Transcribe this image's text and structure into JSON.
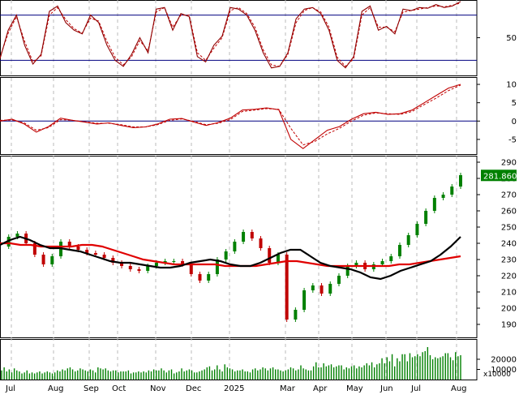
{
  "colors": {
    "up": "#008000",
    "down": "#c00000",
    "ma_short": "#000000",
    "ma_long": "#e00000",
    "osc": "#c00000",
    "panel_line": "#000080",
    "volume": "#008000",
    "price_tag_bg": "#008000",
    "price_tag_text": "#ffffff"
  },
  "x_axis": {
    "labels": [
      "Jul",
      "Aug",
      "Sep",
      "Oct",
      "Nov",
      "Dec",
      "2025",
      "Mar",
      "Apr",
      "May",
      "Jun",
      "Jul",
      "Aug"
    ]
  },
  "panels": {
    "stoch": {
      "type": "line",
      "ylim": [
        0,
        100
      ],
      "ticks": [
        "50"
      ],
      "levels": [
        20,
        80
      ]
    },
    "macd": {
      "type": "line",
      "ylim": [
        -9,
        12
      ],
      "ticks": [
        "10",
        "5",
        "0",
        "-5"
      ]
    },
    "price": {
      "type": "line",
      "ylim": [
        182,
        294
      ],
      "ticks": [
        "290",
        "280",
        "270",
        "260",
        "250",
        "240",
        "230",
        "220",
        "210",
        "200",
        "190"
      ],
      "last_price_label": "281.860",
      "last_price": 281.86
    },
    "volume": {
      "ticks": [
        "20000",
        "10000"
      ],
      "unit_label": "x10000"
    }
  },
  "chart_data": [
    {
      "type": "line",
      "series": [
        {
          "values": [
            22,
            60,
            80,
            40,
            15,
            28,
            85,
            92,
            70,
            60,
            55,
            80,
            70,
            40,
            20,
            12,
            28,
            50,
            30,
            88,
            90,
            60,
            82,
            78,
            25,
            18,
            40,
            52,
            90,
            88,
            80,
            60,
            30,
            10,
            12,
            30,
            75,
            88,
            90,
            82,
            60,
            20,
            10,
            25,
            85,
            92,
            60,
            65,
            55,
            88,
            86,
            90,
            89,
            94,
            90,
            92,
            98
          ]
        },
        {
          "values": [
            24,
            56,
            78,
            45,
            18,
            26,
            80,
            90,
            74,
            62,
            56,
            76,
            72,
            45,
            24,
            14,
            25,
            46,
            33,
            84,
            90,
            64,
            80,
            80,
            30,
            20,
            36,
            50,
            86,
            90,
            82,
            64,
            34,
            14,
            12,
            28,
            70,
            86,
            90,
            84,
            64,
            24,
            12,
            22,
            80,
            90,
            64,
            64,
            58,
            84,
            86,
            88,
            90,
            92,
            91,
            93,
            96
          ]
        }
      ]
    },
    {
      "type": "line",
      "series": [
        {
          "values": [
            0,
            0.5,
            -0.8,
            -3,
            -1.5,
            0.8,
            0.2,
            -0.3,
            -0.8,
            -0.5,
            -1.2,
            -1.8,
            -1.6,
            -0.8,
            0.5,
            0.7,
            -0.3,
            -1.2,
            -0.4,
            0.8,
            3,
            3.2,
            3.6,
            3.1,
            -5,
            -7.5,
            -5,
            -2.5,
            -1.5,
            0.5,
            2,
            2.4,
            1.8,
            2,
            3,
            5,
            7,
            9,
            10
          ]
        },
        {
          "values": [
            0.2,
            0.3,
            -0.5,
            -2.5,
            -1.8,
            0.4,
            0.2,
            -0.2,
            -0.6,
            -0.6,
            -1,
            -1.6,
            -1.6,
            -1,
            0.2,
            0.6,
            -0.1,
            -1,
            -0.6,
            0.4,
            2.6,
            3,
            3.4,
            3.2,
            -2,
            -6.5,
            -5.5,
            -3.5,
            -2,
            0,
            1.6,
            2.2,
            2,
            1.8,
            2.6,
            4.5,
            6.3,
            8.3,
            9.8
          ]
        }
      ]
    },
    {
      "type": "line",
      "series": [
        {
          "values": [
            238,
            244,
            246,
            240,
            233,
            227,
            232,
            241,
            238,
            236,
            234,
            233,
            231,
            228,
            226,
            224,
            223,
            226,
            228,
            229,
            229,
            227,
            221,
            217,
            221,
            230,
            235,
            241,
            247,
            243,
            237,
            228,
            233,
            193,
            199,
            211,
            214,
            209,
            215,
            220,
            226,
            228,
            224,
            227,
            229,
            232,
            239,
            245,
            252,
            260,
            268,
            270,
            275,
            282
          ]
        },
        {
          "values": [
            239,
            242,
            244,
            242,
            239,
            237,
            237,
            236,
            235,
            233,
            231,
            229,
            228,
            228,
            227,
            226,
            225,
            225,
            226,
            228,
            229,
            230,
            229,
            227,
            226,
            226,
            228,
            231,
            234,
            236,
            236,
            232,
            228,
            226,
            225,
            224,
            222,
            219,
            218,
            220,
            223,
            225,
            227,
            229,
            233,
            238,
            244
          ]
        },
        {
          "values": [
            240,
            240,
            239,
            239,
            238,
            238,
            238,
            238,
            239,
            239,
            238,
            236,
            234,
            232,
            230,
            229,
            228,
            227,
            227,
            227,
            227,
            227,
            226,
            226,
            226,
            226,
            227,
            228,
            229,
            229,
            228,
            227,
            226,
            226,
            226,
            226,
            226,
            226,
            226,
            227,
            227,
            228,
            229,
            230,
            231,
            232
          ]
        }
      ]
    },
    {
      "type": "bar",
      "ylim": [
        0,
        40000
      ],
      "values": [
        9000,
        12000,
        8000,
        10000,
        7000,
        11000,
        9000,
        8000,
        6000,
        7000,
        9000,
        6000,
        7000,
        6000,
        7000,
        8000,
        6000,
        7000,
        8000,
        7000,
        6000,
        7000,
        9000,
        8000,
        10000,
        9000,
        11000,
        12000,
        10000,
        8000,
        9000,
        11000,
        10000,
        9000,
        8000,
        10000,
        9000,
        7000,
        12000,
        11000,
        10000,
        11000,
        9000,
        8000,
        9000,
        9000,
        7000,
        8000,
        8000,
        8000,
        9000,
        6000,
        7000,
        7000,
        8000,
        7000,
        8000,
        7000,
        9000,
        8000,
        10000,
        9000,
        9000,
        11000,
        9000,
        7000,
        9000,
        10000,
        6000,
        7000,
        8000,
        11000,
        8000,
        9000,
        10000,
        9000,
        7000,
        7000,
        8000,
        9000,
        10000,
        12000,
        13000,
        9000,
        10000,
        14000,
        10000,
        8000,
        15000,
        12000,
        11000,
        10000,
        8000,
        9000,
        9000,
        10000,
        8000,
        8000,
        7000,
        10000,
        11000,
        9000,
        10000,
        12000,
        11000,
        9000,
        11000,
        12000,
        10000,
        10000,
        9000,
        8000,
        9000,
        10000,
        12000,
        11000,
        9000,
        10000,
        14000,
        11000,
        10000,
        9000,
        9000,
        13000,
        17000,
        12000,
        12000,
        16000,
        13000,
        14000,
        15000,
        12000,
        13000,
        14000,
        14000,
        10000,
        12000,
        11000,
        13000,
        14000,
        11000,
        13000,
        12000,
        14000,
        16000,
        14000,
        17000,
        12000,
        15000,
        16000,
        21000,
        16000,
        22000,
        18000,
        25000,
        13000,
        21000,
        18000,
        25000,
        25000,
        18000,
        26000,
        22000,
        23000,
        25000,
        23000,
        27000,
        28000,
        32000,
        24000,
        20000,
        22000,
        21000,
        22000,
        23000,
        26000,
        26000,
        22000,
        19000,
        27000,
        23000,
        24000
      ]
    }
  ]
}
